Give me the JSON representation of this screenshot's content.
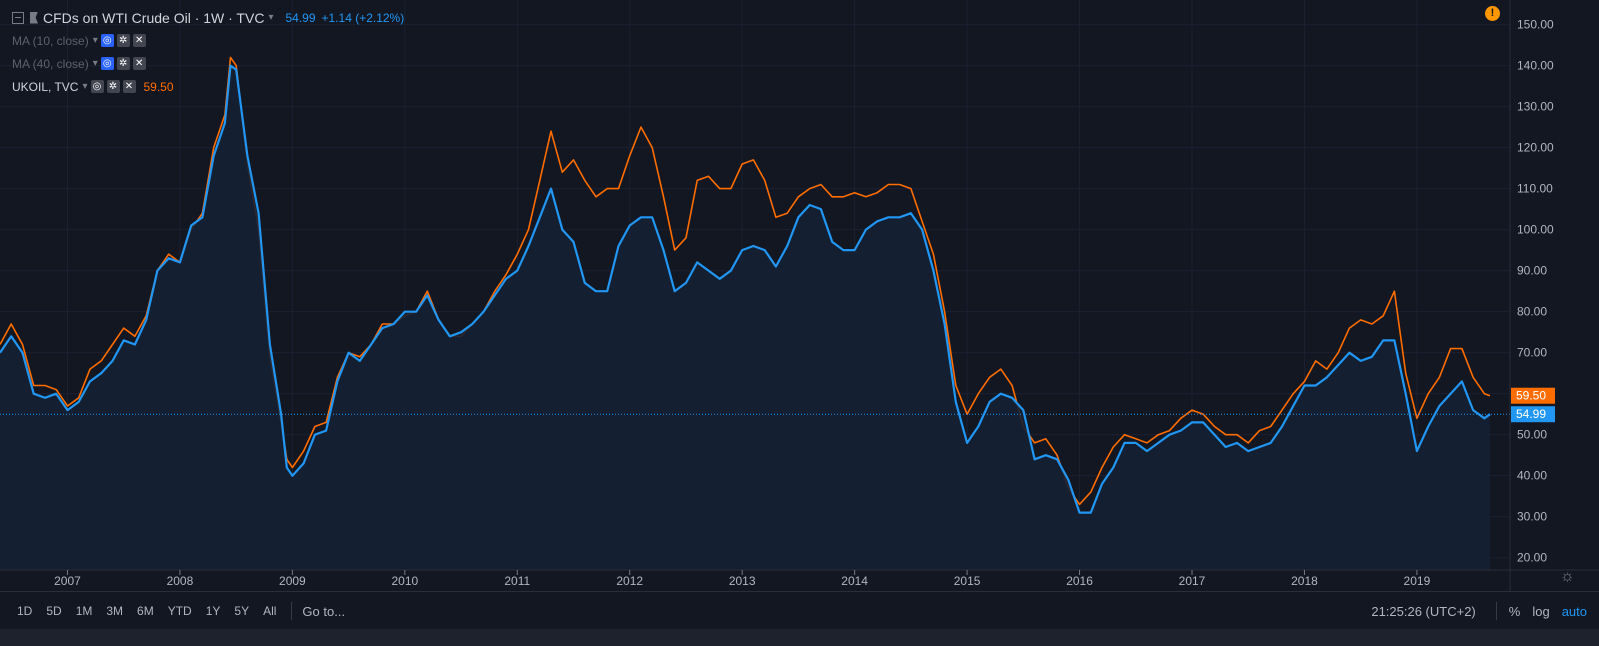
{
  "header": {
    "symbol_title": "CFDs on WTI Crude Oil · 1W · TVC",
    "price": "54.99",
    "change": "+1.14 (+2.12%)",
    "indicators": [
      {
        "label": "MA (10, close)"
      },
      {
        "label": "MA (40, close)"
      }
    ],
    "compare": {
      "label": "UKOIL, TVC",
      "price": "59.50"
    }
  },
  "bottom_bar": {
    "ranges": [
      "1D",
      "5D",
      "1M",
      "3M",
      "6M",
      "YTD",
      "1Y",
      "5Y",
      "All"
    ],
    "goto": "Go to...",
    "time": "21:25:26 (UTC+2)",
    "options": [
      "%",
      "log",
      "auto"
    ]
  },
  "colors": {
    "background": "#131722",
    "wti": "#2196f3",
    "brent": "#ff6d00",
    "grid": "#1c2030",
    "axis_text": "#b2b5be"
  },
  "icons": [
    "collapse-icon",
    "flag-icon",
    "visibility-icon",
    "settings-icon",
    "close-icon",
    "alert-icon",
    "gear-icon"
  ],
  "chart_data": {
    "type": "line",
    "title": "CFDs on WTI Crude Oil · 1W · TVC",
    "x_tick_labels": [
      "2007",
      "2008",
      "2009",
      "2010",
      "2011",
      "2012",
      "2013",
      "2014",
      "2015",
      "2016",
      "2017",
      "2018",
      "2019"
    ],
    "y_tick_labels": [
      "20.00",
      "30.00",
      "40.00",
      "50.00",
      "60.00",
      "70.00",
      "80.00",
      "90.00",
      "100.00",
      "110.00",
      "120.00",
      "130.00",
      "140.00",
      "150.00"
    ],
    "ylim": [
      17,
      156
    ],
    "xlim": [
      2006.4,
      2019.65
    ],
    "last_value_labels": [
      {
        "series": "WTI",
        "value": "54.99"
      },
      {
        "series": "UKOIL",
        "value": "59.50"
      }
    ],
    "series": [
      {
        "name": "WTI",
        "color": "#2196f3",
        "x": [
          2006.4,
          2006.5,
          2006.6,
          2006.7,
          2006.8,
          2006.9,
          2007.0,
          2007.1,
          2007.2,
          2007.3,
          2007.4,
          2007.5,
          2007.6,
          2007.7,
          2007.8,
          2007.9,
          2008.0,
          2008.1,
          2008.2,
          2008.3,
          2008.4,
          2008.45,
          2008.5,
          2008.6,
          2008.7,
          2008.8,
          2008.9,
          2008.95,
          2009.0,
          2009.1,
          2009.2,
          2009.3,
          2009.4,
          2009.5,
          2009.6,
          2009.7,
          2009.8,
          2009.9,
          2010.0,
          2010.1,
          2010.2,
          2010.3,
          2010.4,
          2010.5,
          2010.6,
          2010.7,
          2010.8,
          2010.9,
          2011.0,
          2011.1,
          2011.2,
          2011.3,
          2011.4,
          2011.5,
          2011.6,
          2011.7,
          2011.8,
          2011.9,
          2012.0,
          2012.1,
          2012.2,
          2012.3,
          2012.4,
          2012.5,
          2012.6,
          2012.7,
          2012.8,
          2012.9,
          2013.0,
          2013.1,
          2013.2,
          2013.3,
          2013.4,
          2013.5,
          2013.6,
          2013.7,
          2013.8,
          2013.9,
          2014.0,
          2014.1,
          2014.2,
          2014.3,
          2014.4,
          2014.5,
          2014.6,
          2014.7,
          2014.8,
          2014.9,
          2015.0,
          2015.1,
          2015.2,
          2015.3,
          2015.4,
          2015.5,
          2015.6,
          2015.7,
          2015.8,
          2015.9,
          2016.0,
          2016.1,
          2016.2,
          2016.3,
          2016.4,
          2016.5,
          2016.6,
          2016.7,
          2016.8,
          2016.9,
          2017.0,
          2017.1,
          2017.2,
          2017.3,
          2017.4,
          2017.5,
          2017.6,
          2017.7,
          2017.8,
          2017.9,
          2018.0,
          2018.1,
          2018.2,
          2018.3,
          2018.4,
          2018.5,
          2018.6,
          2018.7,
          2018.8,
          2018.9,
          2019.0,
          2019.1,
          2019.2,
          2019.3,
          2019.4,
          2019.5,
          2019.6,
          2019.65
        ],
        "values": [
          70,
          74,
          70,
          60,
          59,
          60,
          56,
          58,
          63,
          65,
          68,
          73,
          72,
          78,
          90,
          93,
          92,
          101,
          103,
          118,
          126,
          140,
          139,
          118,
          104,
          72,
          55,
          42,
          40,
          43,
          50,
          51,
          63,
          70,
          68,
          72,
          76,
          77,
          80,
          80,
          84,
          78,
          74,
          75,
          77,
          80,
          84,
          88,
          90,
          96,
          103,
          110,
          100,
          97,
          87,
          85,
          85,
          96,
          101,
          103,
          103,
          95,
          85,
          87,
          92,
          90,
          88,
          90,
          95,
          96,
          95,
          91,
          96,
          103,
          106,
          105,
          97,
          95,
          95,
          100,
          102,
          103,
          103,
          104,
          100,
          90,
          77,
          58,
          48,
          52,
          58,
          60,
          59,
          56,
          44,
          45,
          44,
          39,
          31,
          31,
          38,
          42,
          48,
          48,
          46,
          48,
          50,
          51,
          53,
          53,
          50,
          47,
          48,
          46,
          47,
          48,
          52,
          57,
          62,
          62,
          64,
          67,
          70,
          68,
          69,
          73,
          73,
          60,
          46,
          52,
          57,
          60,
          63,
          56,
          54,
          54.99
        ]
      },
      {
        "name": "UKOIL",
        "color": "#ff6d00",
        "x": [
          2006.4,
          2006.5,
          2006.6,
          2006.7,
          2006.8,
          2006.9,
          2007.0,
          2007.1,
          2007.2,
          2007.3,
          2007.4,
          2007.5,
          2007.6,
          2007.7,
          2007.8,
          2007.9,
          2008.0,
          2008.1,
          2008.2,
          2008.3,
          2008.4,
          2008.45,
          2008.5,
          2008.6,
          2008.7,
          2008.8,
          2008.9,
          2008.95,
          2009.0,
          2009.1,
          2009.2,
          2009.3,
          2009.4,
          2009.5,
          2009.6,
          2009.7,
          2009.8,
          2009.9,
          2010.0,
          2010.1,
          2010.2,
          2010.3,
          2010.4,
          2010.5,
          2010.6,
          2010.7,
          2010.8,
          2010.9,
          2011.0,
          2011.1,
          2011.2,
          2011.3,
          2011.4,
          2011.5,
          2011.6,
          2011.7,
          2011.8,
          2011.9,
          2012.0,
          2012.1,
          2012.2,
          2012.3,
          2012.4,
          2012.5,
          2012.6,
          2012.7,
          2012.8,
          2012.9,
          2013.0,
          2013.1,
          2013.2,
          2013.3,
          2013.4,
          2013.5,
          2013.6,
          2013.7,
          2013.8,
          2013.9,
          2014.0,
          2014.1,
          2014.2,
          2014.3,
          2014.4,
          2014.5,
          2014.6,
          2014.7,
          2014.8,
          2014.9,
          2015.0,
          2015.1,
          2015.2,
          2015.3,
          2015.4,
          2015.5,
          2015.6,
          2015.7,
          2015.8,
          2015.9,
          2016.0,
          2016.1,
          2016.2,
          2016.3,
          2016.4,
          2016.5,
          2016.6,
          2016.7,
          2016.8,
          2016.9,
          2017.0,
          2017.1,
          2017.2,
          2017.3,
          2017.4,
          2017.5,
          2017.6,
          2017.7,
          2017.8,
          2017.9,
          2018.0,
          2018.1,
          2018.2,
          2018.3,
          2018.4,
          2018.5,
          2018.6,
          2018.7,
          2018.8,
          2018.9,
          2019.0,
          2019.1,
          2019.2,
          2019.3,
          2019.4,
          2019.5,
          2019.6,
          2019.65
        ],
        "values": [
          72,
          77,
          72,
          62,
          62,
          61,
          57,
          59,
          66,
          68,
          72,
          76,
          74,
          79,
          90,
          94,
          92,
          100,
          104,
          120,
          128,
          142,
          140,
          116,
          100,
          69,
          53,
          44,
          42,
          46,
          52,
          53,
          64,
          70,
          69,
          72,
          77,
          77,
          79,
          80,
          85,
          78,
          74,
          74,
          77,
          80,
          85,
          89,
          94,
          100,
          112,
          124,
          114,
          117,
          112,
          108,
          110,
          110,
          118,
          125,
          120,
          108,
          95,
          98,
          112,
          113,
          110,
          110,
          116,
          117,
          112,
          103,
          104,
          108,
          110,
          111,
          108,
          108,
          109,
          108,
          109,
          111,
          111,
          110,
          102,
          94,
          80,
          62,
          55,
          60,
          64,
          66,
          62,
          52,
          48,
          49,
          45,
          37,
          33,
          36,
          42,
          47,
          50,
          49,
          48,
          50,
          51,
          54,
          56,
          55,
          52,
          50,
          50,
          48,
          51,
          52,
          56,
          60,
          63,
          68,
          66,
          70,
          76,
          78,
          77,
          79,
          85,
          65,
          54,
          60,
          64,
          71,
          71,
          64,
          60,
          59.5
        ]
      }
    ]
  }
}
